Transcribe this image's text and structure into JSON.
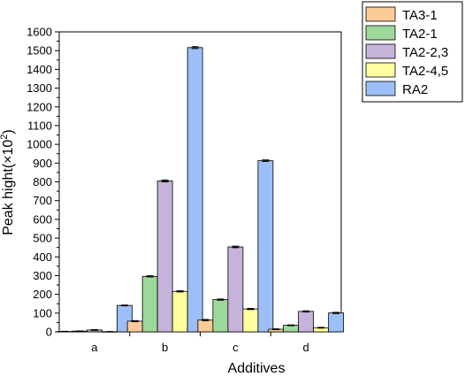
{
  "chart_data": {
    "type": "bar",
    "title": "",
    "xlabel": "Additives",
    "ylabel_main": "Peak hight(×10",
    "ylabel_exp": "2",
    "ylabel_close": ")",
    "ylim": [
      0,
      1600
    ],
    "ytick_step": 100,
    "yticks": [
      "0",
      "100",
      "200",
      "300",
      "400",
      "500",
      "600",
      "700",
      "800",
      "900",
      "1000",
      "1100",
      "1200",
      "1300",
      "1400",
      "1500",
      "1600"
    ],
    "categories": [
      "a",
      "b",
      "c",
      "d"
    ],
    "legend_position": "top-right",
    "grid": false,
    "series": [
      {
        "name": "TA3-1",
        "color": "#FBCB98",
        "values": [
          2,
          57,
          63,
          14
        ],
        "errors": [
          1,
          3,
          3,
          2
        ]
      },
      {
        "name": "TA2-1",
        "color": "#9DD99A",
        "values": [
          4,
          296,
          172,
          35
        ],
        "errors": [
          1,
          3,
          3,
          2
        ]
      },
      {
        "name": "TA2-2,3",
        "color": "#C6B3D9",
        "values": [
          10,
          805,
          453,
          109
        ],
        "errors": [
          2,
          5,
          4,
          3
        ]
      },
      {
        "name": "TA2-4,5",
        "color": "#FEFE9F",
        "values": [
          1,
          216,
          122,
          22
        ],
        "errors": [
          1,
          3,
          3,
          2
        ]
      },
      {
        "name": "RA2",
        "color": "#9CBFF7",
        "values": [
          141,
          1516,
          913,
          101
        ],
        "errors": [
          2,
          5,
          4,
          3
        ]
      }
    ]
  }
}
